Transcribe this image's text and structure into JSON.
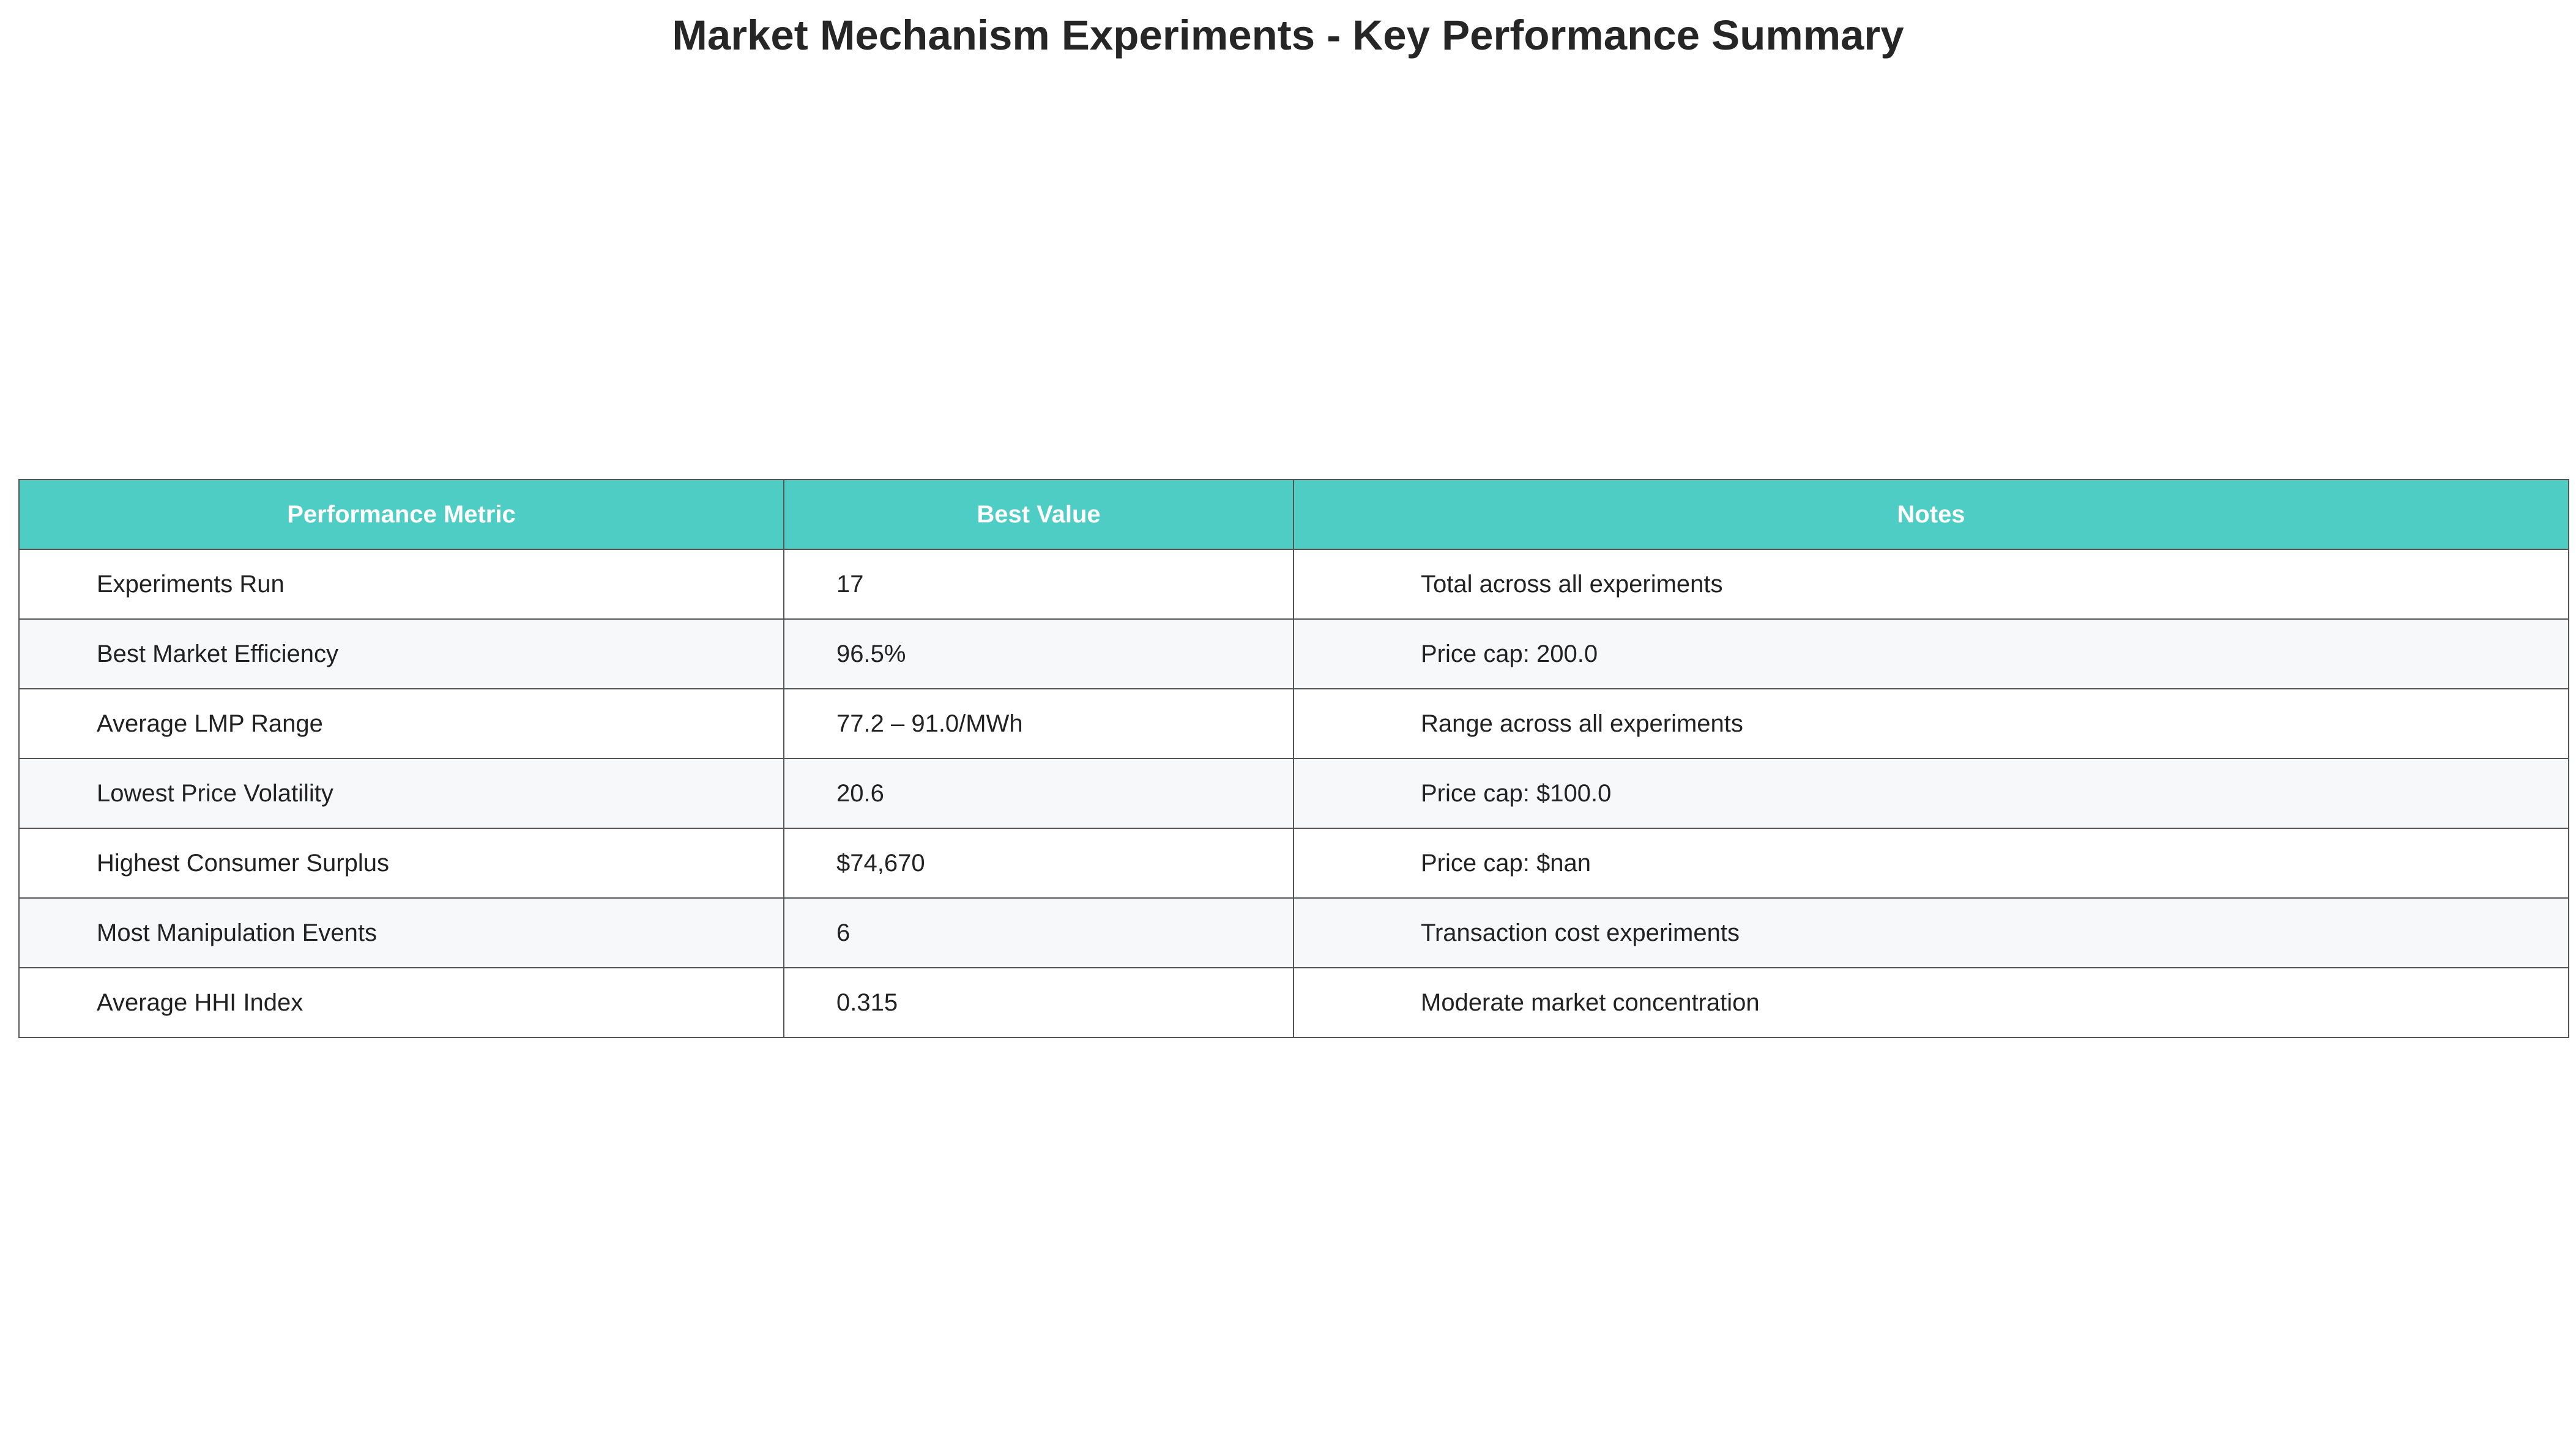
{
  "colors": {
    "header_background": "#4ECDC4",
    "header_text": "#FFFFFF",
    "row_odd": "#FFFFFF",
    "row_even": "#F7F8FA",
    "border": "#555555"
  },
  "chart_data": {
    "type": "table",
    "title": "Market Mechanism Experiments - Key Performance Summary",
    "columns": [
      "Performance Metric",
      "Best Value",
      "Notes"
    ],
    "rows": [
      [
        "Experiments Run",
        "17",
        "Total across all experiments"
      ],
      [
        "Best Market Efficiency",
        "96.5%",
        "Price cap: 200.0"
      ],
      [
        "Average LMP Range",
        "77.2 – 91.0/MWh",
        "Range across all experiments"
      ],
      [
        "Lowest Price Volatility",
        "20.6",
        "Price cap: $100.0"
      ],
      [
        "Highest Consumer Surplus",
        "$74,670",
        "Price cap: $nan"
      ],
      [
        "Most Manipulation Events",
        "6",
        "Transaction cost experiments"
      ],
      [
        "Average HHI Index",
        "0.315",
        "Moderate market concentration"
      ]
    ]
  }
}
